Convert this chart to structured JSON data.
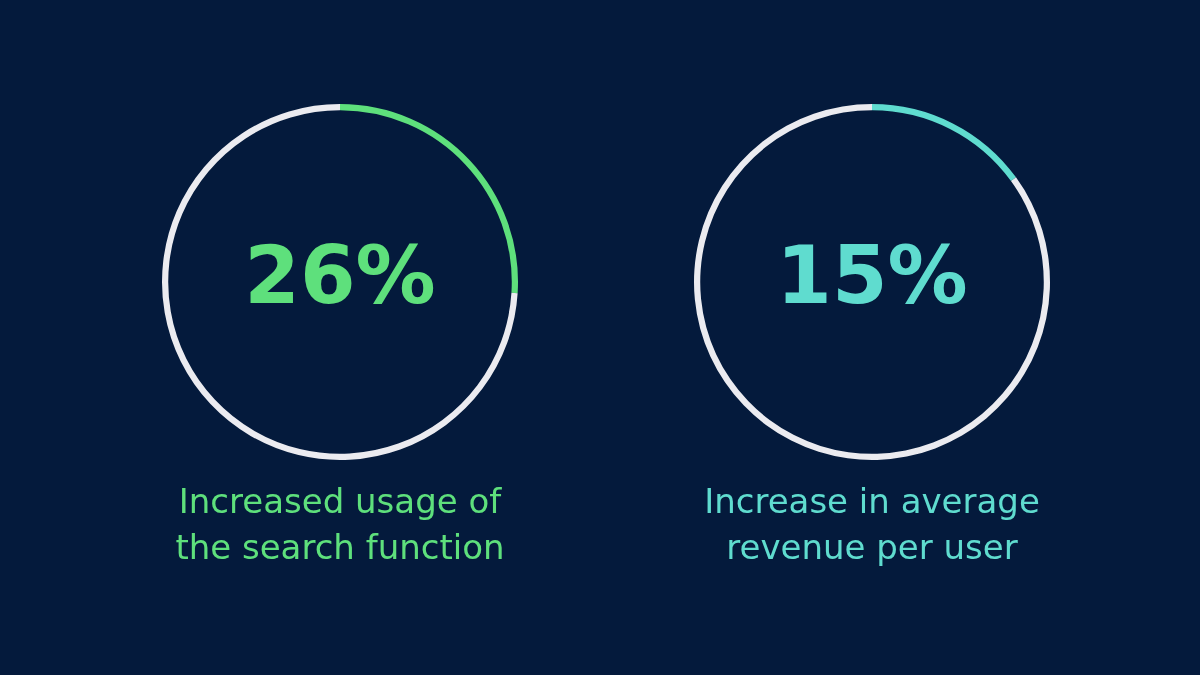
{
  "chart_data": [
    {
      "type": "donut",
      "title": "Increased usage of the search function",
      "categories": [
        null,
        null
      ],
      "values": [
        26,
        74
      ],
      "colors": [
        "#5ee07c",
        "#ebebf0"
      ],
      "value_labels": [
        "26%",
        null
      ]
    },
    {
      "type": "donut",
      "title": "Increase in average revenue per user",
      "categories": [
        null,
        null
      ],
      "values": [
        15,
        85
      ],
      "colors": [
        "#5fdccf",
        "#ebebf0"
      ],
      "value_labels": [
        "15%",
        null
      ]
    }
  ]
}
